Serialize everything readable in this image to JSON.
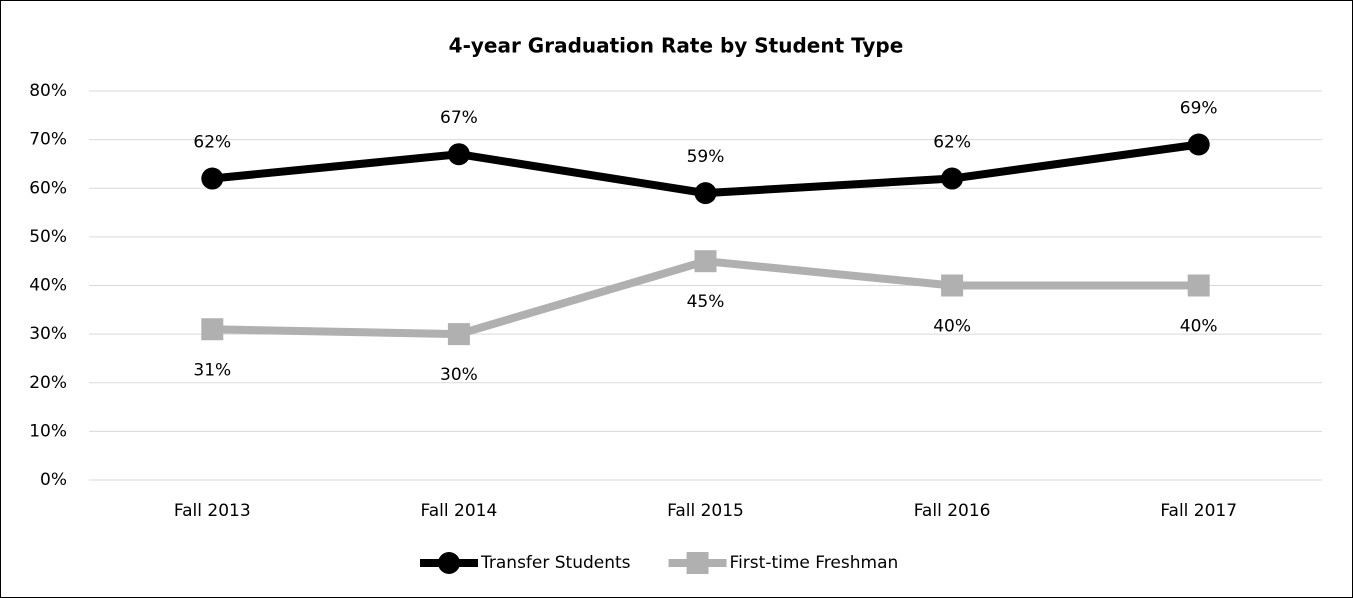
{
  "chart_data": {
    "type": "line",
    "title": "4-year Graduation Rate by Student Type",
    "categories": [
      "Fall 2013",
      "Fall 2014",
      "Fall 2015",
      "Fall 2016",
      "Fall 2017"
    ],
    "series": [
      {
        "name": "Transfer Students",
        "color": "#000000",
        "marker": "circle",
        "values": [
          62,
          67,
          59,
          62,
          69
        ],
        "value_labels": [
          "62%",
          "67%",
          "59%",
          "62%",
          "69%"
        ]
      },
      {
        "name": "First-time Freshman",
        "color": "#b0b0b0",
        "marker": "square",
        "values": [
          31,
          30,
          45,
          40,
          40
        ],
        "value_labels": [
          "31%",
          "30%",
          "45%",
          "40%",
          "40%"
        ]
      }
    ],
    "ylim": [
      0,
      80
    ],
    "yticks": [
      {
        "value": 0,
        "label": "0%"
      },
      {
        "value": 10,
        "label": "10%"
      },
      {
        "value": 20,
        "label": "20%"
      },
      {
        "value": 30,
        "label": "30%"
      },
      {
        "value": 40,
        "label": "40%"
      },
      {
        "value": 50,
        "label": "50%"
      },
      {
        "value": 60,
        "label": "60%"
      },
      {
        "value": 70,
        "label": "70%"
      },
      {
        "value": 80,
        "label": "80%"
      }
    ],
    "grid": true,
    "legend": "bottom"
  }
}
